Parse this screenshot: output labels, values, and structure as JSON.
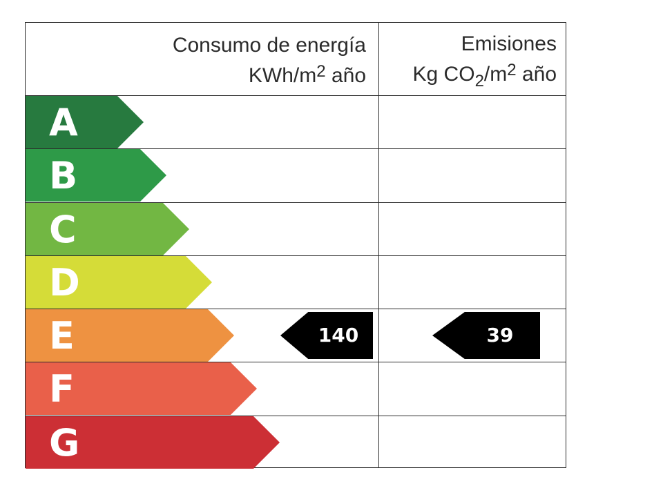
{
  "header": {
    "energy_title": "Consumo de energía",
    "energy_unit_prefix": "KWh/m",
    "energy_unit_exp": "2",
    "energy_unit_suffix": " año",
    "emissions_title": "Emisiones",
    "emissions_unit_prefix": "Kg CO",
    "emissions_unit_sub": "2",
    "emissions_unit_mid": "/m",
    "emissions_unit_exp": "2",
    "emissions_unit_suffix": " año"
  },
  "ratings": [
    {
      "letter": "A",
      "color": "#277a3f"
    },
    {
      "letter": "B",
      "color": "#2e9a48"
    },
    {
      "letter": "C",
      "color": "#72b743"
    },
    {
      "letter": "D",
      "color": "#d5dc38"
    },
    {
      "letter": "E",
      "color": "#ee9241"
    },
    {
      "letter": "F",
      "color": "#e9604a"
    },
    {
      "letter": "G",
      "color": "#cc2f35"
    }
  ],
  "energy_value": "140",
  "emissions_value": "39",
  "selected_rating": "E"
}
